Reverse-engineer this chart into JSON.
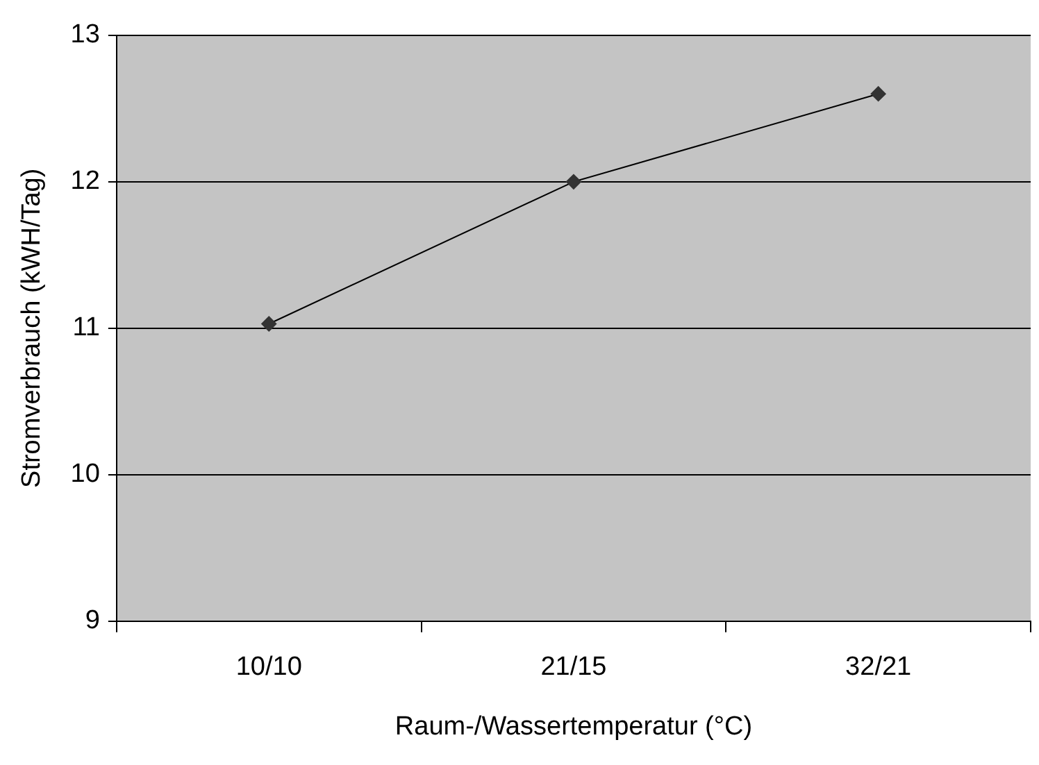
{
  "chart_data": {
    "type": "line",
    "xlabel": "Raum-/Wassertemperatur (°C)",
    "ylabel": "Stromverbrauch (kWH/Tag)",
    "categories": [
      "10/10",
      "21/15",
      "32/21"
    ],
    "series": [
      {
        "color": "#000000",
        "values": [
          11.03,
          12.0,
          12.6
        ]
      }
    ],
    "ylim": [
      9,
      13
    ],
    "yticks": [
      9,
      10,
      11,
      12,
      13
    ],
    "grid": "y",
    "legend": false,
    "marker": "diamond",
    "line_style": "solid"
  }
}
